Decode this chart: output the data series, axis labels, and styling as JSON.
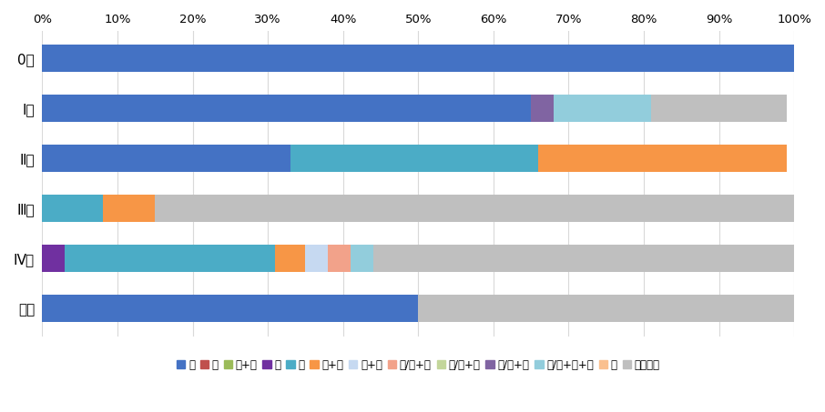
{
  "categories": [
    "0期",
    "Ⅰ期",
    "Ⅱ期",
    "Ⅲ期",
    "Ⅳ期",
    "不明"
  ],
  "legend_labels": [
    "手",
    "内",
    "手+内",
    "放",
    "薬",
    "放+薬",
    "薬+他",
    "手/内+放",
    "手/内+薬",
    "手/内+他",
    "手/内+放+薬",
    "他",
    "治療なし"
  ],
  "colors": [
    "#4472c4",
    "#c0504d",
    "#9bbb59",
    "#7030a0",
    "#4bacc6",
    "#f79646",
    "#c6d9f1",
    "#f2a28a",
    "#c3d69b",
    "#8064a2",
    "#92cddc",
    "#fac08f",
    "#bfbfbf"
  ],
  "data": {
    "0期": [
      100,
      0,
      0,
      0,
      0,
      0,
      0,
      0,
      0,
      0,
      0,
      0,
      0
    ],
    "Ⅰ期": [
      65,
      0,
      0,
      0,
      0,
      0,
      0,
      0,
      0,
      3,
      13,
      0,
      18
    ],
    "Ⅱ期": [
      33,
      0,
      0,
      0,
      33,
      33,
      0,
      0,
      0,
      0,
      0,
      0,
      0
    ],
    "Ⅲ期": [
      0,
      0,
      0,
      0,
      8,
      7,
      0,
      0,
      0,
      0,
      0,
      0,
      85
    ],
    "Ⅳ期": [
      0,
      0,
      0,
      3,
      28,
      4,
      3,
      3,
      0,
      0,
      3,
      0,
      56
    ],
    "不明": [
      50,
      0,
      0,
      0,
      0,
      0,
      0,
      0,
      0,
      0,
      0,
      0,
      50
    ]
  },
  "background_color": "#ffffff",
  "xtick_labels": [
    "0%",
    "10%",
    "20%",
    "30%",
    "40%",
    "50%",
    "60%",
    "70%",
    "80%",
    "90%",
    "100%"
  ],
  "figsize": [
    9.06,
    4.53
  ],
  "dpi": 100,
  "bar_height": 0.55,
  "font_size_ytick": 11,
  "font_size_xtick": 9.5,
  "font_size_legend": 8.5
}
